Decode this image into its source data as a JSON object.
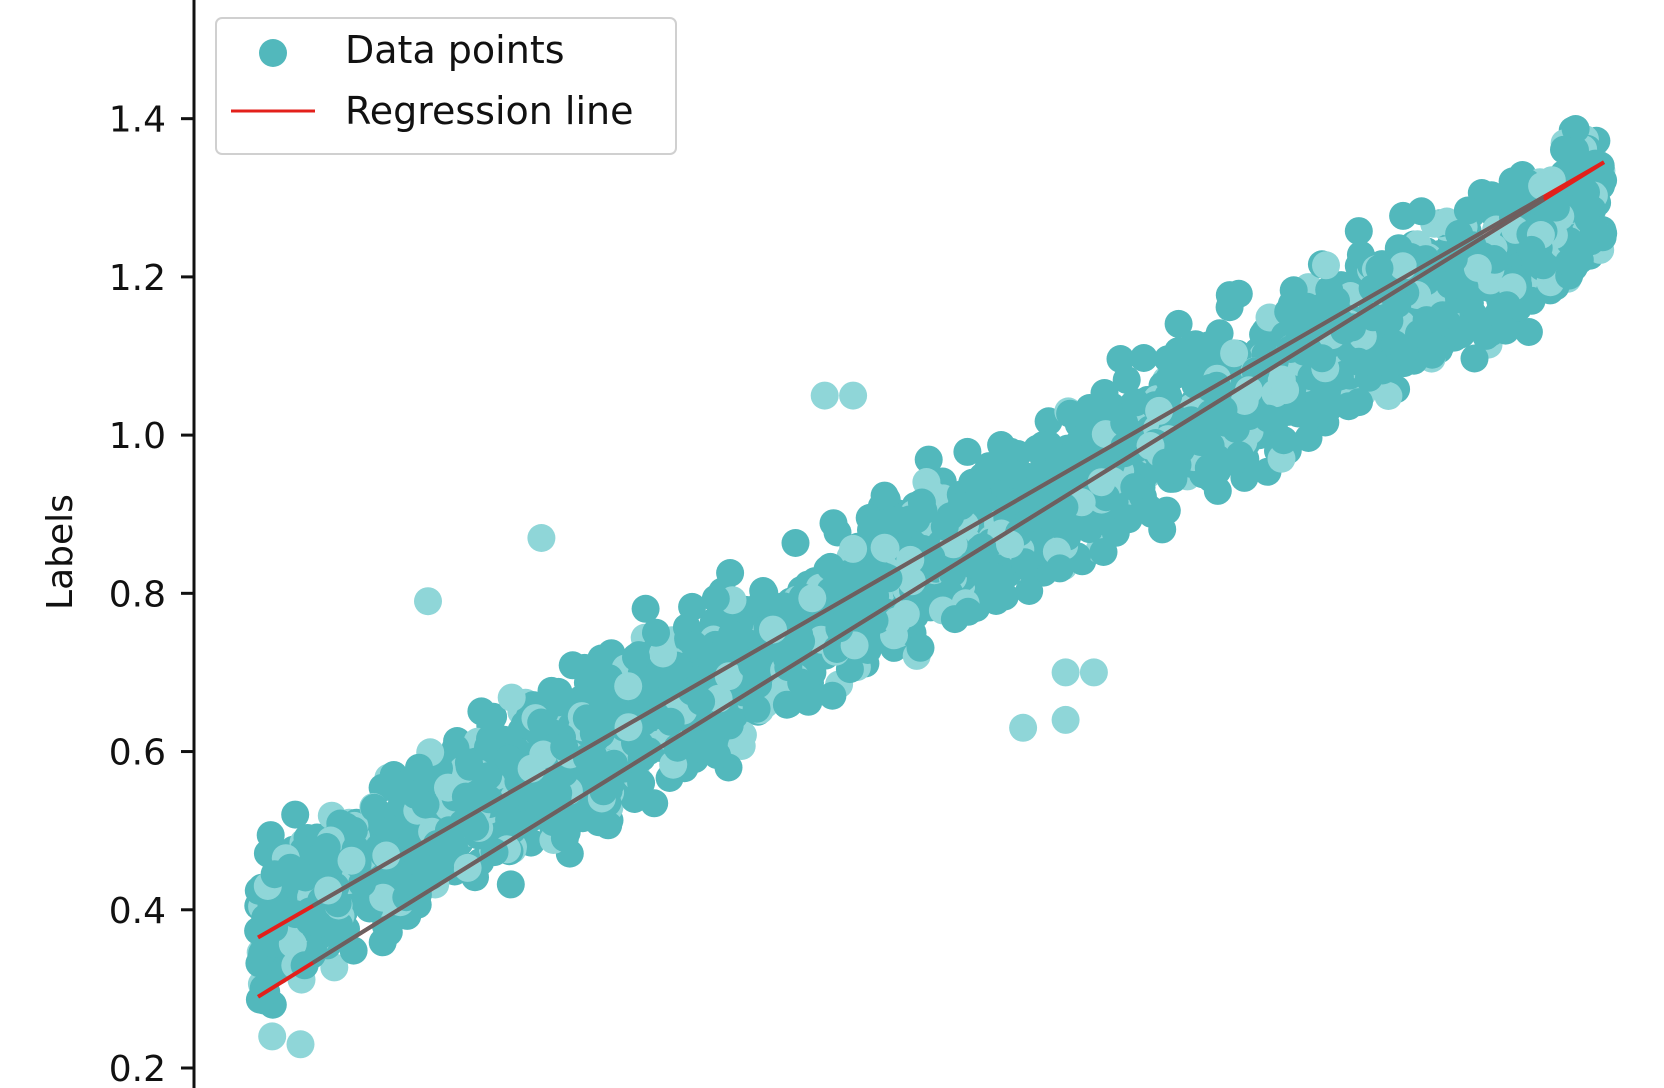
{
  "chart_data": {
    "type": "scatter",
    "title": "",
    "xlabel": "",
    "ylabel": "Labels",
    "ylim": [
      0.2,
      1.55
    ],
    "y_ticks": [
      "0.2",
      "0.4",
      "0.6",
      "0.8",
      "1.0",
      "1.2",
      "1.4"
    ],
    "y_tick_values": [
      0.2,
      0.4,
      0.6,
      0.8,
      1.0,
      1.2,
      1.4
    ],
    "xlim": [
      0,
      1
    ],
    "grid": false,
    "legend_placement": "top-left",
    "colors": {
      "points": "#52b8bc",
      "points_light": "#8fd6d8",
      "regression": "#e3201b",
      "overlap_line": "#6b6060"
    },
    "series": [
      {
        "name": "Data points",
        "kind": "scatter",
        "cloud": {
          "x_range": [
            0.04,
            0.99
          ],
          "center_at_x_min": 0.38,
          "center_at_x_max": 1.3,
          "half_width": 0.1,
          "max_y": 1.5,
          "min_y": 0.23
        },
        "outliers": [
          [
            0.16,
            0.79
          ],
          [
            0.24,
            0.87
          ],
          [
            0.44,
            1.05
          ],
          [
            0.46,
            1.05
          ],
          [
            0.61,
            0.7
          ],
          [
            0.63,
            0.7
          ],
          [
            0.58,
            0.63
          ],
          [
            0.61,
            0.64
          ],
          [
            0.05,
            0.24
          ],
          [
            0.07,
            0.23
          ]
        ]
      },
      {
        "name": "Regression line",
        "kind": "line",
        "lines": [
          {
            "x": [
              0.04,
              0.99
            ],
            "y": [
              0.365,
              1.345
            ]
          },
          {
            "x": [
              0.04,
              0.99
            ],
            "y": [
              0.29,
              1.345
            ]
          }
        ]
      }
    ]
  }
}
